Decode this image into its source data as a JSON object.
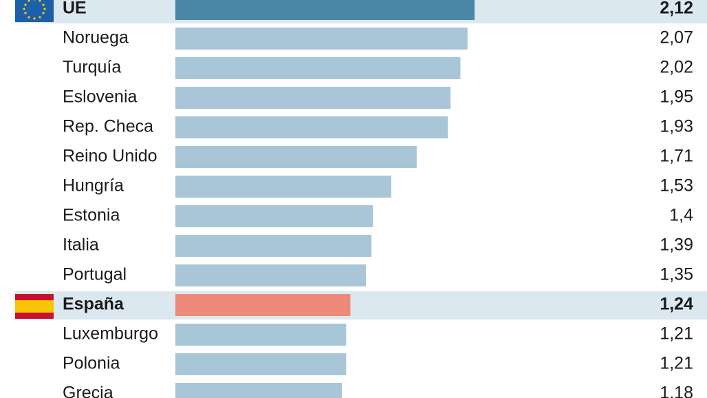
{
  "chart_data": {
    "type": "bar",
    "orientation": "horizontal",
    "categories": [
      "UE",
      "Noruega",
      "Turquía",
      "Eslovenia",
      "Rep. Checa",
      "Reino Unido",
      "Hungría",
      "Estonia",
      "Italia",
      "Portugal",
      "España",
      "Luxemburgo",
      "Polonia",
      "Grecia"
    ],
    "values": [
      2.12,
      2.07,
      2.02,
      1.95,
      1.93,
      1.71,
      1.53,
      1.4,
      1.39,
      1.35,
      1.24,
      1.21,
      1.21,
      1.18
    ],
    "value_labels": [
      "2,12",
      "2,07",
      "2,02",
      "1,95",
      "1,93",
      "1,71",
      "1,53",
      "1,4",
      "1,39",
      "1,35",
      "1,24",
      "1,21",
      "1,21",
      "1,18"
    ],
    "colors": [
      "#4a86a8",
      "#a9c6d9",
      "#a9c6d9",
      "#a9c6d9",
      "#a9c6d9",
      "#a9c6d9",
      "#a9c6d9",
      "#a9c6d9",
      "#a9c6d9",
      "#a9c6d9",
      "#ee8a7a",
      "#a9c6d9",
      "#a9c6d9",
      "#a9c6d9"
    ],
    "highlight_indices": [
      0,
      10
    ],
    "xlim": [
      0,
      2.5
    ]
  }
}
